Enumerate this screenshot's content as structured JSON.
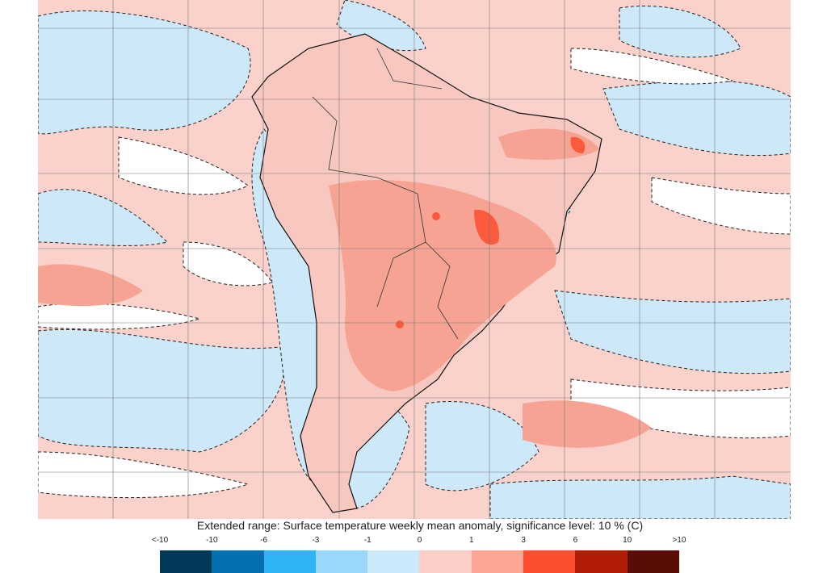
{
  "title": "Extended range: Surface temperature weekly mean anomaly, significance level: 10 % (C)",
  "legend": {
    "ticks": [
      "<-10",
      "-10",
      "-6",
      "-3",
      "-1",
      "0",
      "1",
      "3",
      "6",
      "10",
      ">10"
    ],
    "colors": [
      "#023858",
      "#0570b0",
      "#2fb5f5",
      "#9ad8fb",
      "#cce9fb",
      "#fccfc8",
      "#fba694",
      "#fd4f2f",
      "#b21d07",
      "#5a0d05"
    ]
  },
  "map_colors": {
    "background_warm": "#fad2cb",
    "cool": "#cde8f8",
    "neutral": "#ffffff",
    "warm_strong": "#f6a393",
    "hot": "#fc5a3c"
  }
}
